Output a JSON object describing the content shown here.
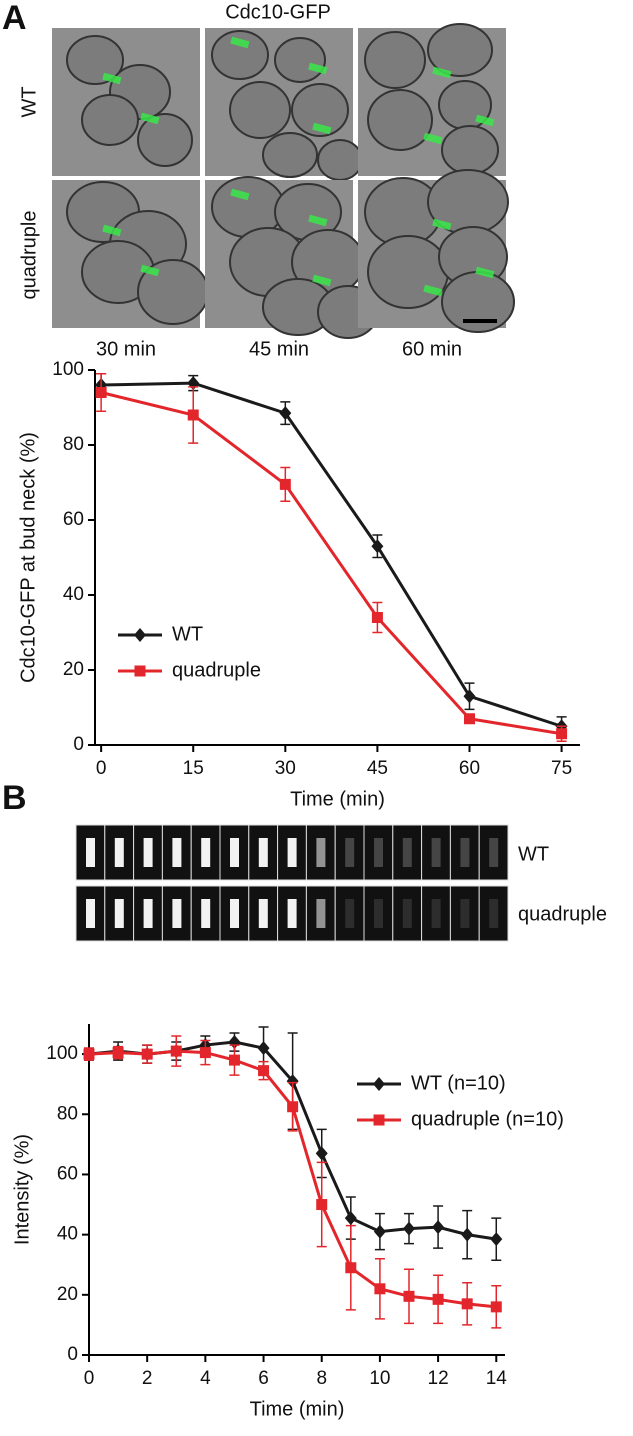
{
  "panels": {
    "a_label": "A",
    "a_title": "Cdc10-GFP",
    "a_rows": [
      "WT",
      "quadruple"
    ],
    "a_columns": [
      "30 min",
      "45 min",
      "60 min"
    ],
    "b_label": "B",
    "b_rows": [
      "WT",
      "quadruple"
    ]
  },
  "chart_data": [
    {
      "type": "line",
      "xlabel": "Time (min)",
      "ylabel": "Cdc10-GFP at bud neck (%)",
      "x": [
        0,
        15,
        30,
        45,
        60,
        75
      ],
      "xlim": [
        -1,
        78
      ],
      "xticks": [
        0,
        15,
        30,
        45,
        60,
        75
      ],
      "ylim": [
        0,
        100
      ],
      "yticks": [
        0,
        20,
        40,
        60,
        80,
        100
      ],
      "legend": "lower left",
      "series": [
        {
          "name": "WT",
          "color": "#1a1a1a",
          "marker": "diamond",
          "values": [
            96,
            96.5,
            88.5,
            53,
            13,
            5
          ],
          "errors": [
            3,
            2,
            3,
            3,
            3.5,
            2.5
          ]
        },
        {
          "name": "quadruple",
          "color": "#e3262b",
          "marker": "square",
          "values": [
            94,
            88,
            69.5,
            34,
            7,
            3
          ],
          "errors": [
            5,
            7.5,
            4.5,
            4,
            1,
            2
          ]
        }
      ]
    },
    {
      "type": "line",
      "xlabel": "Time (min)",
      "ylabel": "Intensity (%)",
      "x": [
        0,
        1,
        2,
        3,
        4,
        5,
        6,
        7,
        8,
        9,
        10,
        11,
        12,
        13,
        14
      ],
      "xlim": [
        0,
        14.3
      ],
      "xticks": [
        0,
        2,
        4,
        6,
        8,
        10,
        12,
        14
      ],
      "ylim": [
        0,
        110
      ],
      "yticks": [
        0,
        20,
        40,
        60,
        80,
        100
      ],
      "legend": "upper right",
      "series": [
        {
          "name": "WT (n=10)",
          "color": "#1a1a1a",
          "marker": "diamond",
          "values": [
            100,
            101,
            100,
            101,
            103,
            104,
            102,
            91,
            67,
            45.5,
            41,
            42,
            42.5,
            40,
            38.5
          ],
          "errors": [
            2,
            3,
            3,
            3,
            3,
            3,
            7,
            16,
            8,
            7,
            6,
            5,
            7,
            8,
            7
          ]
        },
        {
          "name": "quadruple (n=10)",
          "color": "#e3262b",
          "marker": "square",
          "values": [
            100,
            100.5,
            100,
            101,
            100.5,
            98,
            94.5,
            82.5,
            50,
            29,
            22,
            19.5,
            18.5,
            17,
            16
          ],
          "errors": [
            2,
            2,
            3,
            5,
            4,
            5,
            3,
            8,
            14,
            14,
            10,
            9,
            8,
            7,
            7
          ]
        }
      ]
    }
  ]
}
